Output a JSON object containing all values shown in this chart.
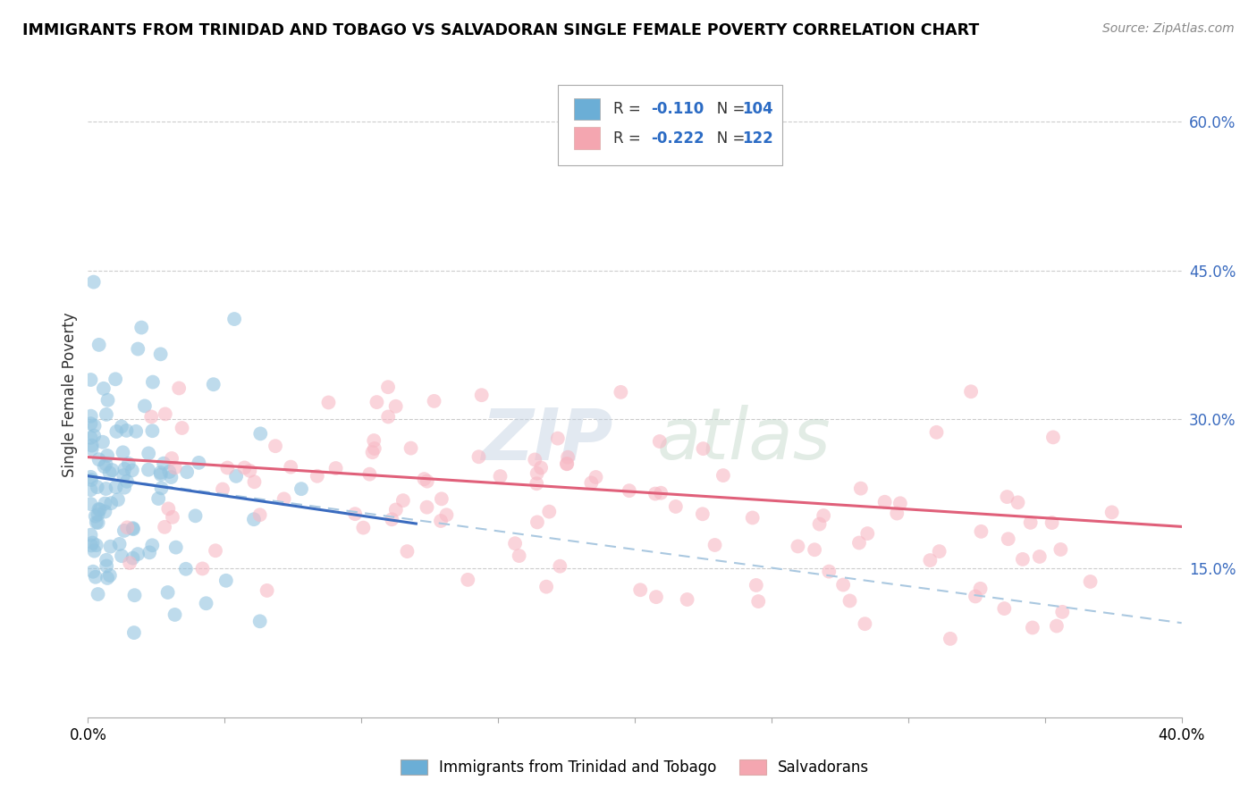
{
  "title": "IMMIGRANTS FROM TRINIDAD AND TOBAGO VS SALVADORAN SINGLE FEMALE POVERTY CORRELATION CHART",
  "source": "Source: ZipAtlas.com",
  "ylabel": "Single Female Poverty",
  "right_yticks": [
    0.15,
    0.3,
    0.45,
    0.6
  ],
  "right_yticklabels": [
    "15.0%",
    "30.0%",
    "45.0%",
    "60.0%"
  ],
  "legend_label_tt": "Immigrants from Trinidad and Tobago",
  "legend_label_sal": "Salvadorans",
  "color_tt": "#93c4e0",
  "color_sal": "#f7b8c4",
  "trendline_tt_color": "#3a6bbf",
  "trendline_sal_color": "#e0607a",
  "trendline_dashed_color": "#aac8e0",
  "watermark_zip": "ZIP",
  "watermark_atlas": "atlas",
  "R_tt": -0.11,
  "N_tt": 104,
  "R_sal": -0.222,
  "N_sal": 122,
  "xmin": 0.0,
  "xmax": 0.4,
  "ymin": 0.0,
  "ymax": 0.65,
  "legend_color_tt": "#6baed6",
  "legend_color_sal": "#f4a6b0",
  "legend_R_color": "#2b6bc4",
  "legend_R_sal_color": "#e0607a"
}
